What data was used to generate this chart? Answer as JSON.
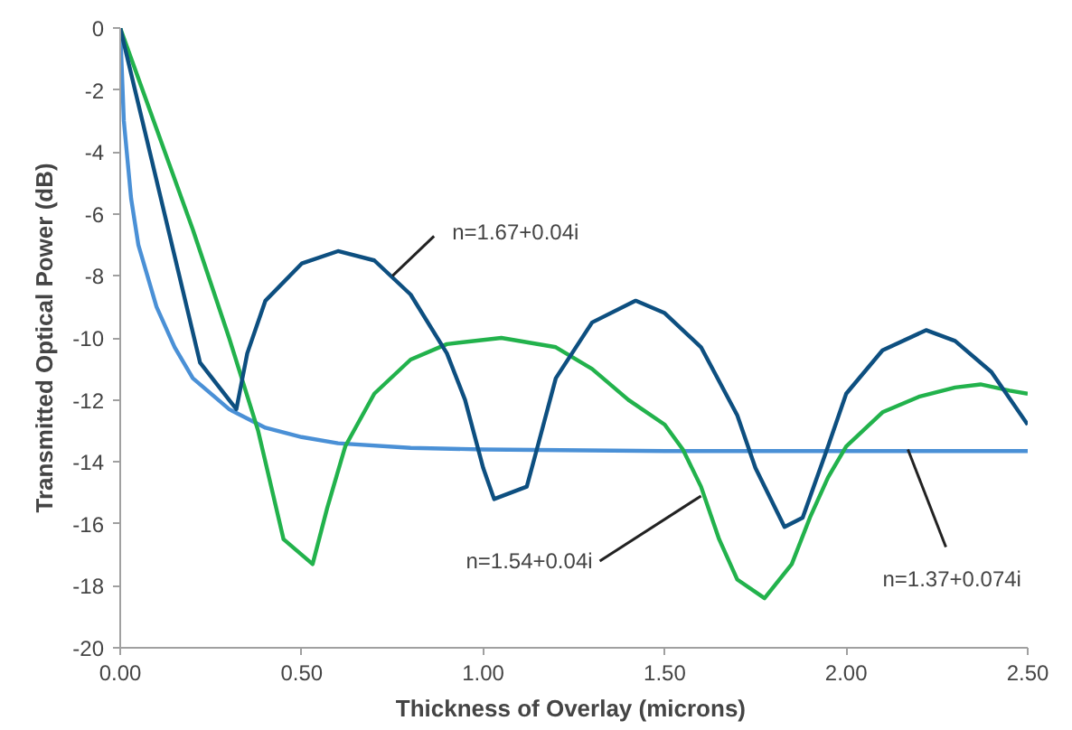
{
  "chart_data": {
    "type": "line",
    "xlabel": "Thickness of Overlay  (microns)",
    "ylabel": "Transmitted Optical Power (dB)",
    "xlim": [
      0,
      2.5
    ],
    "ylim": [
      -20,
      0
    ],
    "xticks": [
      {
        "value": 0,
        "label": "0.00"
      },
      {
        "value": 0.5,
        "label": "0.50"
      },
      {
        "value": 1,
        "label": "1.00"
      },
      {
        "value": 1.5,
        "label": "1.50"
      },
      {
        "value": 2,
        "label": "2.00"
      },
      {
        "value": 2.5,
        "label": "2.50"
      }
    ],
    "yticks": [
      0,
      -2,
      -4,
      -6,
      -8,
      -10,
      -12,
      -14,
      -16,
      -18,
      -20
    ],
    "grid": false,
    "marker": "none",
    "line_style": "solid",
    "series": [
      {
        "color": "#4a90d6",
        "x": [
          0,
          0.01,
          0.03,
          0.05,
          0.1,
          0.15,
          0.2,
          0.3,
          0.4,
          0.5,
          0.6,
          0.8,
          1.0,
          1.5,
          2.5
        ],
        "values": [
          0,
          -3,
          -5.5,
          -7,
          -9,
          -10.3,
          -11.3,
          -12.3,
          -12.9,
          -13.2,
          -13.4,
          -13.55,
          -13.6,
          -13.65,
          -13.65
        ]
      },
      {
        "color": "#22b24c",
        "x": [
          0,
          0.2,
          0.3,
          0.38,
          0.45,
          0.53,
          0.57,
          0.62,
          0.7,
          0.8,
          0.9,
          1.05,
          1.2,
          1.3,
          1.4,
          1.5,
          1.55,
          1.6,
          1.65,
          1.7,
          1.775,
          1.85,
          1.9,
          1.95,
          2.0,
          2.1,
          2.2,
          2.3,
          2.37,
          2.45,
          2.5
        ],
        "values": [
          0,
          -6.5,
          -10,
          -13,
          -16.5,
          -17.3,
          -15.5,
          -13.5,
          -11.8,
          -10.7,
          -10.2,
          -10,
          -10.3,
          -11,
          -12,
          -12.8,
          -13.6,
          -14.8,
          -16.5,
          -17.8,
          -18.4,
          -17.3,
          -15.8,
          -14.5,
          -13.5,
          -12.4,
          -11.9,
          -11.6,
          -11.5,
          -11.7,
          -11.8
        ]
      },
      {
        "color": "#0d4f80",
        "x": [
          0,
          0.22,
          0.32,
          0.35,
          0.4,
          0.5,
          0.6,
          0.7,
          0.8,
          0.9,
          0.95,
          1.0,
          1.03,
          1.12,
          1.15,
          1.2,
          1.3,
          1.42,
          1.5,
          1.6,
          1.7,
          1.75,
          1.83,
          1.88,
          1.95,
          2.0,
          2.1,
          2.22,
          2.3,
          2.4,
          2.5
        ],
        "values": [
          0,
          -10.8,
          -12.3,
          -10.5,
          -8.8,
          -7.6,
          -7.2,
          -7.5,
          -8.6,
          -10.5,
          -12,
          -14.2,
          -15.2,
          -14.8,
          -13.5,
          -11.3,
          -9.5,
          -8.8,
          -9.2,
          -10.3,
          -12.5,
          -14.2,
          -16.1,
          -15.8,
          -13.5,
          -11.8,
          -10.4,
          -9.75,
          -10.1,
          -11.1,
          -12.8
        ]
      }
    ],
    "annotations": [
      {
        "text": "n=1.67+0.04i",
        "x": 0.75,
        "y": -8.0
      },
      {
        "text": "n=1.54+0.04i",
        "x": 1.6,
        "y": -15.1
      },
      {
        "text": "n=1.37+0.074i",
        "x": 2.17,
        "y": -13.6
      }
    ]
  }
}
